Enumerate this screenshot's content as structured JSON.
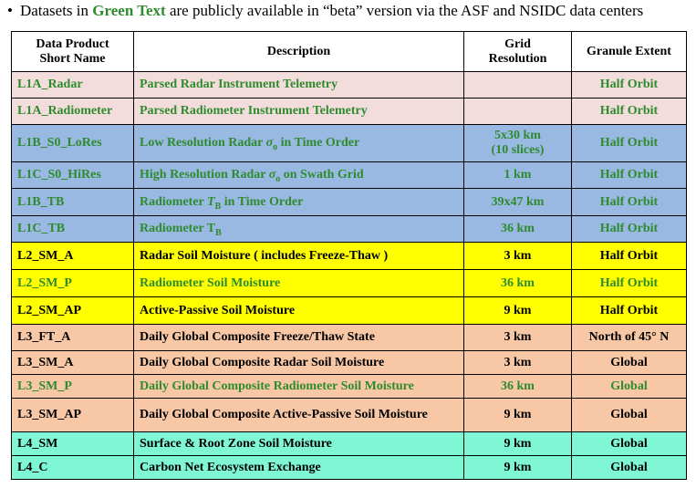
{
  "note": {
    "prefix": "Datasets in ",
    "highlight": "Green Text",
    "suffix": " are publicly available in “beta” version via the ASF and NSIDC data centers"
  },
  "headers": {
    "name": "Data Product Short Name",
    "description": "Description",
    "grid": "Grid Resolution",
    "extent": "Granule Extent"
  },
  "rows": [
    {
      "name": "L1A_Radar",
      "desc": "Parsed Radar Instrument Telemetry",
      "grid": "",
      "extent": "Half Orbit",
      "color": "#f3dcdc",
      "name_green": true,
      "desc_green": true,
      "grid_green": false,
      "extent_green": true
    },
    {
      "name": "L1A_Radiometer",
      "desc": "Parsed Radiometer Instrument Telemetry",
      "grid": "",
      "extent": "Half Orbit",
      "color": "#f3dcdc",
      "name_green": true,
      "desc_green": true,
      "grid_green": false,
      "extent_green": true
    },
    {
      "name": "L1B_S0_LoRes",
      "desc_pre": "Low Resolution Radar ",
      "desc_sym": "σ",
      "desc_sub": "o",
      "desc_post": " in Time Order",
      "grid": "5x30 km",
      "grid2": "(10 slices)",
      "extent": "Half Orbit",
      "color": "#99b9e2",
      "name_green": true,
      "desc_green": true,
      "grid_green": true,
      "extent_green": true
    },
    {
      "name": "L1C_S0_HiRes",
      "desc_pre": "High Resolution Radar ",
      "desc_sym": "σ",
      "desc_sub": "o",
      "desc_post": " on Swath Grid",
      "grid": "1 km",
      "extent": "Half Orbit",
      "color": "#99b9e2",
      "name_green": true,
      "desc_green": true,
      "grid_green": true,
      "extent_green": true
    },
    {
      "name": "L1B_TB",
      "desc_pre": "Radiometer ",
      "desc_sym": "T",
      "desc_sub": "B",
      "desc_post": " in Time Order",
      "grid": "39x47 km",
      "extent": "Half Orbit",
      "color": "#99b9e2",
      "name_green": true,
      "desc_green": true,
      "grid_green": true,
      "extent_green": true
    },
    {
      "name": "L1C_TB",
      "desc_pre": "Radiometer T",
      "desc_sym": "",
      "desc_sub": "B",
      "desc_post": "",
      "grid": "36 km",
      "extent": "Half Orbit",
      "color": "#99b9e2",
      "name_green": true,
      "desc_green": true,
      "grid_green": true,
      "extent_green": true
    },
    {
      "name": "L2_SM_A",
      "desc": "Radar Soil Moisture  ( includes Freeze-Thaw )",
      "grid": "3 km",
      "extent": "Half Orbit",
      "color": "#ffff00",
      "name_green": false,
      "desc_green": false,
      "grid_green": false,
      "extent_green": false
    },
    {
      "name": "L2_SM_P",
      "desc": "Radiometer Soil Moisture",
      "grid": "36 km",
      "extent": "Half Orbit",
      "color": "#ffff00",
      "name_green": true,
      "desc_green": true,
      "grid_green": true,
      "extent_green": true
    },
    {
      "name": "L2_SM_AP",
      "desc": "Active-Passive Soil Moisture",
      "grid": "9 km",
      "extent": "Half Orbit",
      "color": "#ffff00",
      "name_green": false,
      "desc_green": false,
      "grid_green": false,
      "extent_green": false
    },
    {
      "name": "L3_FT_A",
      "desc": "Daily Global Composite Freeze/Thaw State",
      "grid": "3 km",
      "extent": "North of 45° N",
      "color": "#f7c7a6",
      "name_green": false,
      "desc_green": false,
      "grid_green": false,
      "extent_green": false
    },
    {
      "name": "L3_SM_A",
      "desc": "Daily Global Composite Radar Soil Moisture",
      "grid": "3 km",
      "extent": "Global",
      "color": "#f7c7a6",
      "name_green": false,
      "desc_green": false,
      "grid_green": false,
      "extent_green": false
    },
    {
      "name": "L3_SM_P",
      "desc": "Daily Global Composite Radiometer Soil Moisture",
      "grid": "36 km",
      "extent": "Global",
      "color": "#f7c7a6",
      "name_green": true,
      "desc_green": true,
      "grid_green": true,
      "extent_green": true
    },
    {
      "name": "L3_SM_AP",
      "desc": "Daily Global Composite Active-Passive Soil Moisture",
      "grid": "9 km",
      "extent": "Global",
      "color": "#f7c7a6",
      "name_green": false,
      "desc_green": false,
      "grid_green": false,
      "extent_green": false
    },
    {
      "name": "L4_SM",
      "desc": "Surface  & Root Zone Soil Moisture",
      "grid": "9 km",
      "extent": "Global",
      "color": "#7ff7d4",
      "name_green": false,
      "desc_green": false,
      "grid_green": false,
      "extent_green": false
    },
    {
      "name": "L4_C",
      "desc": "Carbon Net Ecosystem Exchange",
      "grid": "9 km",
      "extent": "Global",
      "color": "#7ff7d4",
      "name_green": false,
      "desc_green": false,
      "grid_green": false,
      "extent_green": false
    }
  ]
}
